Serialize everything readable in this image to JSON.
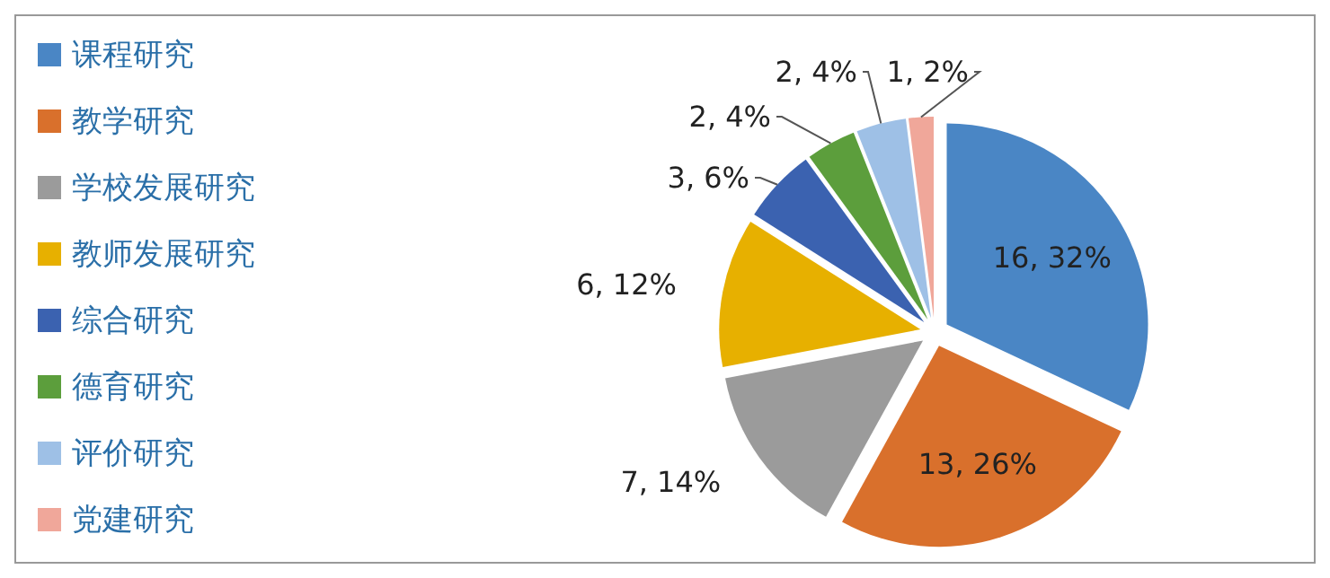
{
  "chart_data": {
    "type": "pie",
    "categories": [
      "课程研究",
      "教学研究",
      "学校发展研究",
      "教师发展研究",
      "综合研究",
      "德育研究",
      "评价研究",
      "党建研究"
    ],
    "values": [
      16,
      13,
      7,
      6,
      3,
      2,
      2,
      1
    ],
    "colors": [
      "#4a86c5",
      "#d9702c",
      "#9b9b9b",
      "#e7b000",
      "#3b62b0",
      "#5c9e3c",
      "#9ec0e6",
      "#f0a79a"
    ],
    "value_labels": [
      "16, 32%",
      "13, 26%",
      "7, 14%",
      "6, 12%",
      "3, 6%",
      "2, 4%",
      "2, 4%",
      "1, 2%"
    ],
    "legend": "left"
  }
}
